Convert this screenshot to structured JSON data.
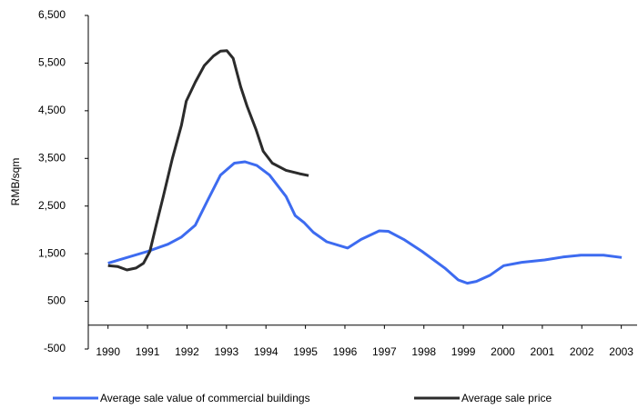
{
  "chart_data": {
    "type": "line",
    "y_label": "RMB/sqm",
    "xlim": [
      1989.5,
      2003.4
    ],
    "xticks": [
      1990,
      1991,
      1992,
      1993,
      1994,
      1995,
      1996,
      1997,
      1998,
      1999,
      2000,
      2001,
      2002,
      2003
    ],
    "ylim": [
      -500,
      6500
    ],
    "yticks": [
      -500,
      500,
      {
        "value": 1500,
        "label": "1,500"
      },
      {
        "value": 2500,
        "label": "2,500"
      },
      {
        "value": 3500,
        "label": "3,500"
      },
      {
        "value": 4500,
        "label": "4,500"
      },
      {
        "value": 5500,
        "label": "5,500"
      },
      {
        "value": 6500,
        "label": "6,500"
      }
    ],
    "grid": false,
    "legend": "bottom",
    "series": [
      {
        "name": "Average sale value of commercial buildings",
        "color": "#3d6bf0",
        "x": [
          1990,
          1991.01,
          1991.52,
          1991.86,
          1992.21,
          1992.51,
          1992.85,
          1993.2,
          1993.47,
          1993.77,
          1994.09,
          1994.51,
          1994.74,
          1994.97,
          1995.2,
          1995.54,
          1996.07,
          1996.41,
          1996.87,
          1997.1,
          1997.49,
          1997.95,
          1998.53,
          1998.87,
          1999.1,
          1999.33,
          1999.68,
          2000.02,
          2000.48,
          2001.06,
          2001.52,
          2001.98,
          2002.55,
          2003.01
        ],
        "values": [
          1300,
          1550,
          1700,
          1850,
          2100,
          2600,
          3150,
          3400,
          3430,
          3350,
          3150,
          2700,
          2300,
          2150,
          1950,
          1750,
          1620,
          1800,
          1980,
          1970,
          1800,
          1550,
          1200,
          950,
          880,
          920,
          1050,
          1250,
          1320,
          1370,
          1430,
          1470,
          1470,
          1420
        ]
      },
      {
        "name": "Average sale price",
        "color": "#2b2b2b",
        "x": [
          1990,
          1990.25,
          1990.48,
          1990.71,
          1990.9,
          1991.06,
          1991.22,
          1991.4,
          1991.63,
          1991.86,
          1991.98,
          1992.21,
          1992.44,
          1992.67,
          1992.85,
          1993.01,
          1993.17,
          1993.36,
          1993.52,
          1993.75,
          1993.93,
          1994.16,
          1994.51,
          1994.85,
          1995.08
        ],
        "values": [
          1250,
          1230,
          1160,
          1200,
          1300,
          1550,
          2100,
          2700,
          3500,
          4200,
          4700,
          5100,
          5450,
          5650,
          5750,
          5760,
          5600,
          5000,
          4600,
          4100,
          3650,
          3400,
          3250,
          3180,
          3140
        ]
      }
    ]
  }
}
